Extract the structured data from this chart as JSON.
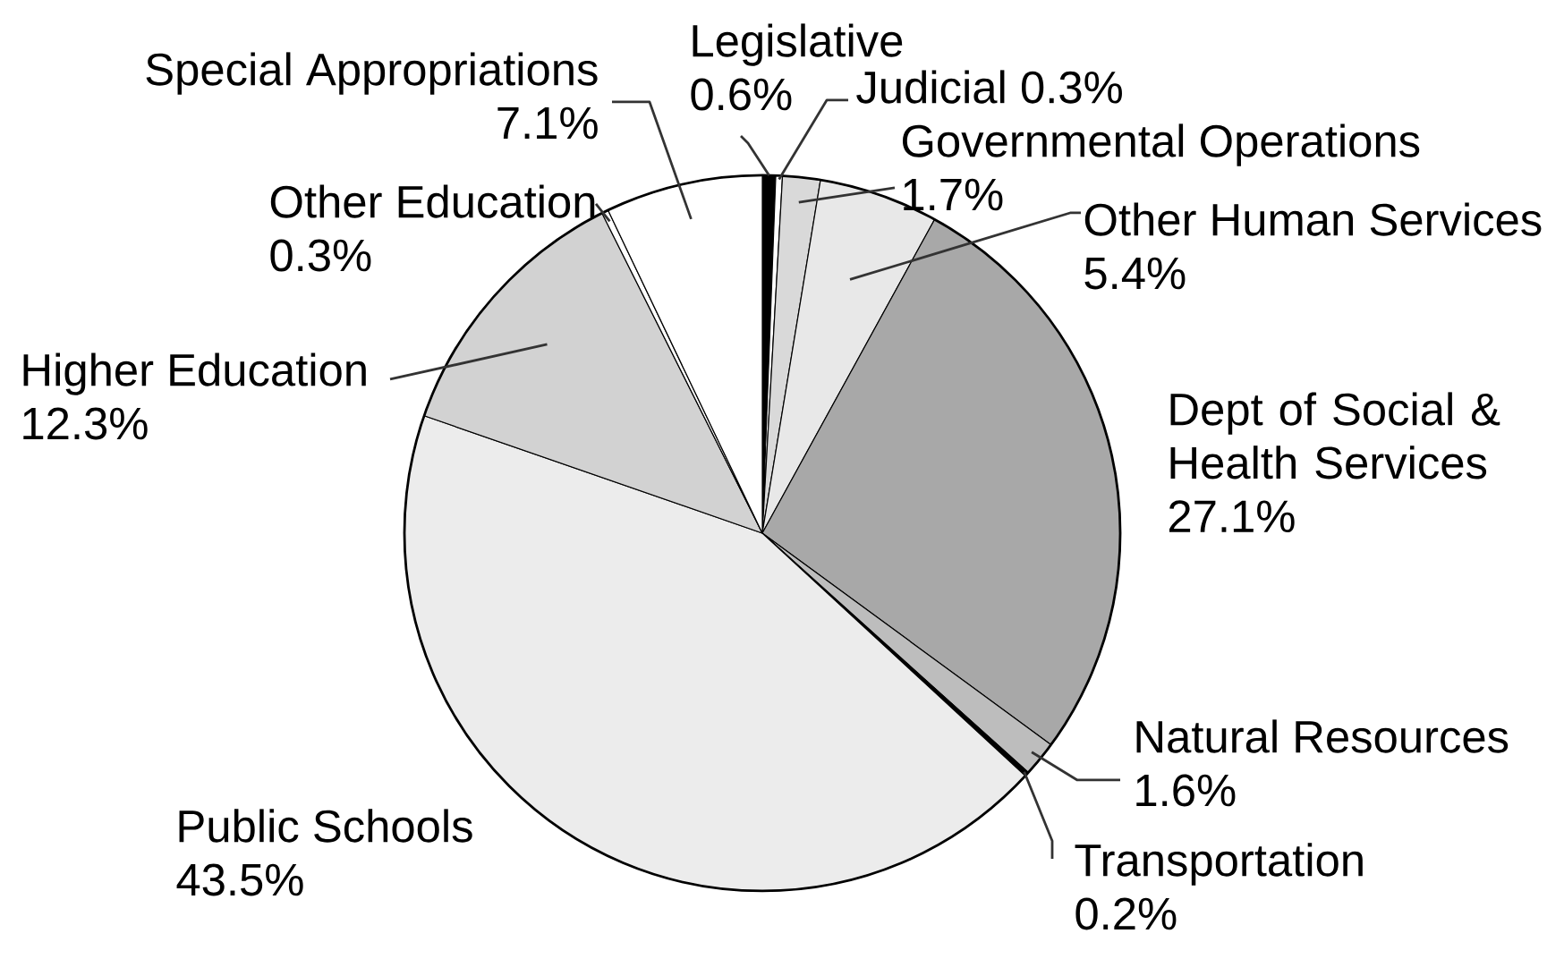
{
  "chart_data": {
    "type": "pie",
    "categories": [
      "Legislative",
      "Judicial",
      "Governmental Operations",
      "Other Human Services",
      "Dept of Social & Health Services",
      "Natural Resources",
      "Transportation",
      "Public Schools",
      "Higher Education",
      "Other Education",
      "Special Appropriations"
    ],
    "values": [
      0.6,
      0.3,
      1.7,
      5.4,
      27.1,
      1.6,
      0.2,
      43.5,
      12.3,
      0.3,
      7.1
    ],
    "value_labels": [
      "0.6%",
      "0.3%",
      "1.7%",
      "5.4%",
      "27.1%",
      "1.6%",
      "0.2%",
      "43.5%",
      "12.3%",
      "0.3%",
      "7.1%"
    ],
    "colors": [
      "#000000",
      "#ffffff",
      "#d9d9d9",
      "#e8e8e8",
      "#a8a8a8",
      "#bdbdbd",
      "#000000",
      "#ececec",
      "#d2d2d2",
      "#ffffff",
      "#ffffff"
    ]
  }
}
